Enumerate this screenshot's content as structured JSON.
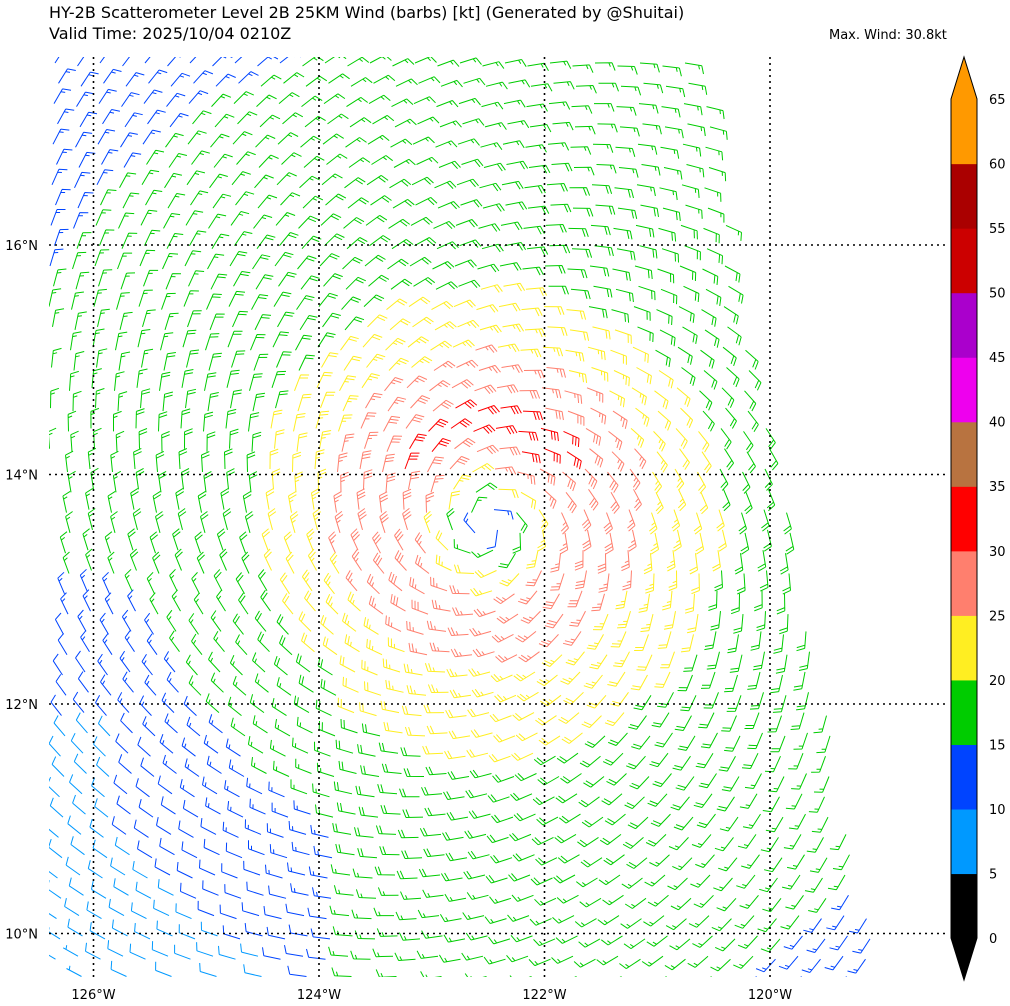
{
  "title_line1": "HY-2B Scatterometer Level 2B 25KM Wind (barbs) [kt] (Generated by @Shuitai)",
  "title_line2": "Valid Time: 2025/10/04 0210Z",
  "max_wind": "Max. Wind: 30.8kt",
  "map": {
    "lon_range": [
      -126.4,
      -118.5
    ],
    "lat_range": [
      9.8,
      17.6
    ],
    "lon_ticks": [
      -126,
      -124,
      -122,
      -120
    ],
    "lon_tick_labels": [
      "126°W",
      "124°W",
      "122°W",
      "120°W"
    ],
    "lat_ticks": [
      10,
      12,
      14,
      16
    ],
    "lat_tick_labels": [
      "10°N",
      "12°N",
      "14°N",
      "16°N"
    ],
    "gridlines": "dotted black",
    "storm_center": {
      "lon": -122.5,
      "lat": 13.55
    },
    "max_wind_center": {
      "lon": -122.15,
      "lat": 14.35
    },
    "barb_direction": "cyclonic counter-clockwise circulation around storm center"
  },
  "colorbar": {
    "levels": [
      0,
      5,
      10,
      15,
      20,
      25,
      30,
      35,
      40,
      45,
      50,
      55,
      60,
      65
    ],
    "labels": [
      "0",
      "5",
      "10",
      "15",
      "20",
      "25",
      "30",
      "35",
      "40",
      "45",
      "50",
      "55",
      "60",
      "65"
    ],
    "colors": [
      "#000000",
      "#0099ff",
      "#0044ff",
      "#00cc00",
      "#ffee22",
      "#ff7f6e",
      "#ff0000",
      "#b87340",
      "#ee00ee",
      "#aa00cc",
      "#cc0000",
      "#aa0000",
      "#ff9900"
    ],
    "extend": "both",
    "under_color": "#000000",
    "over_color": "#ff9900"
  }
}
